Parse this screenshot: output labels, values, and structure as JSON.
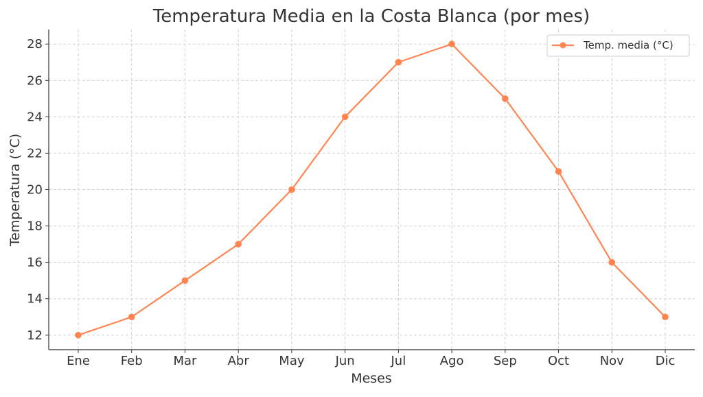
{
  "chart_data": {
    "type": "line",
    "title": "Temperatura Media en la Costa Blanca (por mes)",
    "xlabel": "Meses",
    "ylabel": "Temperatura (°C)",
    "categories": [
      "Ene",
      "Feb",
      "Mar",
      "Abr",
      "May",
      "Jun",
      "Jul",
      "Ago",
      "Sep",
      "Oct",
      "Nov",
      "Dic"
    ],
    "series": [
      {
        "name": "Temp. media (°C)",
        "values": [
          12,
          13,
          15,
          17,
          20,
          24,
          27,
          28,
          25,
          21,
          16,
          13
        ],
        "color": "#ff8450"
      }
    ],
    "ylim": [
      11.2,
      28.8
    ],
    "yticks": [
      12,
      14,
      16,
      18,
      20,
      22,
      24,
      26,
      28
    ],
    "grid": true,
    "grid_style": "dashed",
    "legend_position": "top-right",
    "marker": "circle"
  }
}
